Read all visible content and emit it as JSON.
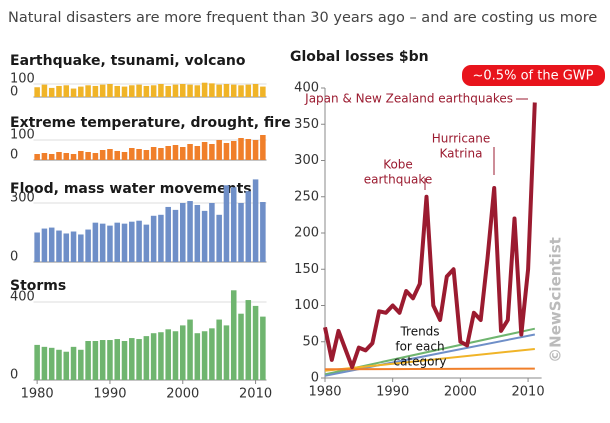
{
  "title": "Natural disasters are more frequent than 30 years ago – and are costing us more",
  "chart_data": [
    {
      "type": "bar",
      "title": "Earthquake, tsunami, volcano",
      "color": "#f0b428",
      "x": [
        1980,
        1981,
        1982,
        1983,
        1984,
        1985,
        1986,
        1987,
        1988,
        1989,
        1990,
        1991,
        1992,
        1993,
        1994,
        1995,
        1996,
        1997,
        1998,
        1999,
        2000,
        2001,
        2002,
        2003,
        2004,
        2005,
        2006,
        2007,
        2008,
        2009,
        2010,
        2011
      ],
      "values": [
        75,
        95,
        70,
        85,
        90,
        65,
        80,
        90,
        85,
        95,
        100,
        85,
        80,
        90,
        95,
        85,
        90,
        100,
        85,
        95,
        100,
        95,
        90,
        110,
        105,
        95,
        100,
        95,
        90,
        95,
        100,
        80
      ],
      "xlim": [
        1979.5,
        2011.5
      ],
      "ylim": [
        0,
        120
      ],
      "yticks": [
        0,
        100
      ]
    },
    {
      "type": "bar",
      "title": "Extreme temperature, drought, fire",
      "color": "#f07f2a",
      "x": [
        1980,
        1981,
        1982,
        1983,
        1984,
        1985,
        1986,
        1987,
        1988,
        1989,
        1990,
        1991,
        1992,
        1993,
        1994,
        1995,
        1996,
        1997,
        1998,
        1999,
        2000,
        2001,
        2002,
        2003,
        2004,
        2005,
        2006,
        2007,
        2008,
        2009,
        2010,
        2011
      ],
      "values": [
        30,
        35,
        30,
        40,
        35,
        30,
        45,
        40,
        35,
        50,
        55,
        45,
        40,
        60,
        55,
        50,
        65,
        60,
        70,
        75,
        65,
        80,
        70,
        90,
        80,
        100,
        85,
        95,
        110,
        105,
        100,
        125
      ],
      "xlim": [
        1979.5,
        2011.5
      ],
      "ylim": [
        0,
        130
      ],
      "yticks": [
        0,
        100
      ]
    },
    {
      "type": "bar",
      "title": "Flood, mass water movements",
      "color": "#6f8fc8",
      "x": [
        1980,
        1981,
        1982,
        1983,
        1984,
        1985,
        1986,
        1987,
        1988,
        1989,
        1990,
        1991,
        1992,
        1993,
        1994,
        1995,
        1996,
        1997,
        1998,
        1999,
        2000,
        2001,
        2002,
        2003,
        2004,
        2005,
        2006,
        2007,
        2008,
        2009,
        2010,
        2011
      ],
      "values": [
        150,
        170,
        175,
        160,
        145,
        155,
        140,
        165,
        200,
        195,
        185,
        200,
        195,
        205,
        210,
        190,
        235,
        240,
        280,
        265,
        300,
        310,
        290,
        260,
        300,
        240,
        390,
        380,
        300,
        360,
        420,
        305
      ],
      "xlim": [
        1979.5,
        2011.5
      ],
      "ylim": [
        0,
        450
      ],
      "yticks": [
        0,
        300
      ]
    },
    {
      "type": "bar",
      "title": "Storms",
      "color": "#6fb56f",
      "x": [
        1980,
        1981,
        1982,
        1983,
        1984,
        1985,
        1986,
        1987,
        1988,
        1989,
        1990,
        1991,
        1992,
        1993,
        1994,
        1995,
        1996,
        1997,
        1998,
        1999,
        2000,
        2001,
        2002,
        2003,
        2004,
        2005,
        2006,
        2007,
        2008,
        2009,
        2010,
        2011
      ],
      "values": [
        180,
        170,
        165,
        155,
        145,
        170,
        155,
        200,
        200,
        205,
        205,
        210,
        200,
        215,
        210,
        225,
        240,
        245,
        260,
        250,
        280,
        310,
        240,
        250,
        265,
        310,
        280,
        460,
        340,
        410,
        380,
        325
      ],
      "xlim": [
        1979.5,
        2011.5
      ],
      "ylim": [
        0,
        460
      ],
      "yticks": [
        0,
        400
      ],
      "xticks": [
        1980,
        1990,
        2000,
        2010
      ]
    },
    {
      "type": "line",
      "title": "Global losses $bn",
      "color": "#9b1b30",
      "x": [
        1980,
        1981,
        1982,
        1983,
        1984,
        1985,
        1986,
        1987,
        1988,
        1989,
        1990,
        1991,
        1992,
        1993,
        1994,
        1995,
        1996,
        1997,
        1998,
        1999,
        2000,
        2001,
        2002,
        2003,
        2004,
        2005,
        2006,
        2007,
        2008,
        2009,
        2010,
        2011
      ],
      "values": [
        70,
        25,
        65,
        40,
        15,
        42,
        38,
        48,
        92,
        90,
        100,
        90,
        120,
        110,
        130,
        250,
        100,
        80,
        140,
        150,
        50,
        45,
        90,
        80,
        165,
        262,
        65,
        80,
        220,
        60,
        150,
        380
      ],
      "trends": [
        {
          "color": "#6fb56f",
          "x": [
            1980,
            2011
          ],
          "values": [
            5,
            68
          ]
        },
        {
          "color": "#6f8fc8",
          "x": [
            1980,
            2011
          ],
          "values": [
            3,
            60
          ]
        },
        {
          "color": "#f0b428",
          "x": [
            1980,
            2011
          ],
          "values": [
            10,
            40
          ]
        },
        {
          "color": "#f07f2a",
          "x": [
            1980,
            2011
          ],
          "values": [
            12,
            13
          ]
        }
      ],
      "xlim": [
        1980,
        2012
      ],
      "ylim": [
        0,
        400
      ],
      "xticks": [
        1980,
        1990,
        2000,
        2010
      ],
      "yticks": [
        0,
        50,
        100,
        150,
        200,
        250,
        300,
        350,
        400
      ],
      "annotations": [
        {
          "lines": [
            "Japan & New Zealand earthquakes"
          ]
        },
        {
          "lines": [
            "Kobe",
            "earthquake"
          ]
        },
        {
          "lines": [
            "Hurricane",
            "Katrina"
          ]
        },
        {
          "lines": [
            "Trends",
            "for each",
            "category"
          ]
        }
      ],
      "callout": "~0.5% of the GWP",
      "credit": "©NewScientist"
    }
  ]
}
